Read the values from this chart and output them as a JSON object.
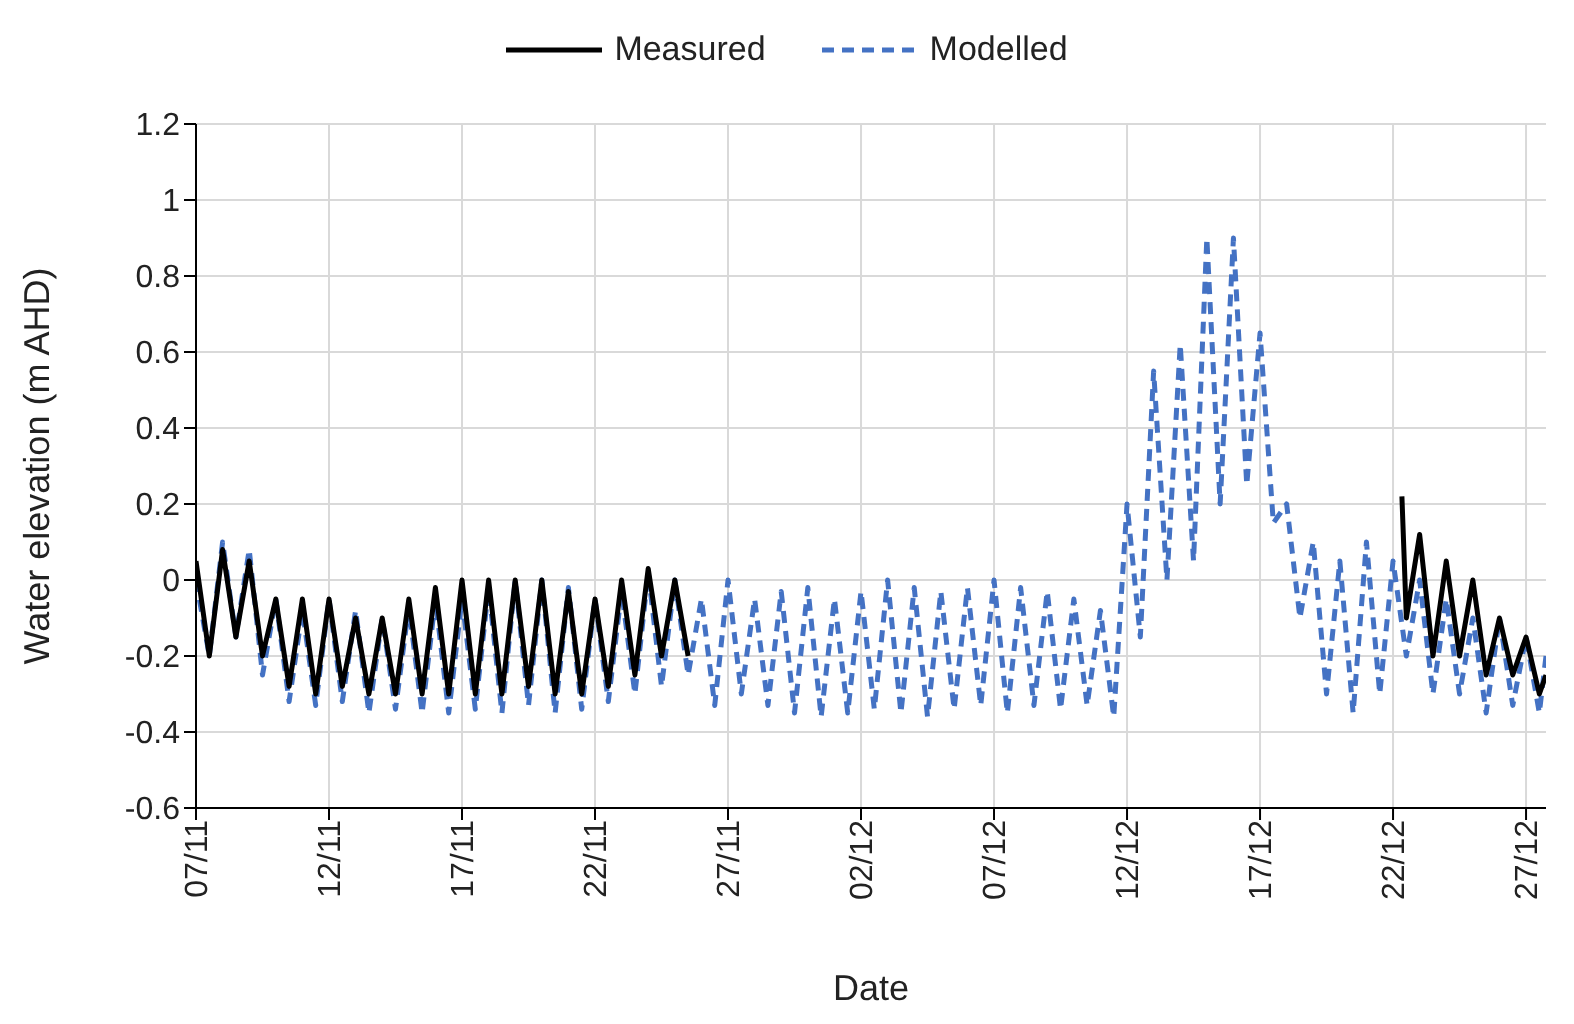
{
  "chart_data": {
    "type": "line",
    "xlabel": "Date",
    "ylabel": "Water elevation (m AHD)",
    "legend": "top",
    "grid": true,
    "marker": "none",
    "xlim": [
      "--11-07",
      "--12-27T18:00"
    ],
    "xticks": [
      {
        "value": "--11-07",
        "label": "07/11"
      },
      {
        "value": "--11-12",
        "label": "12/11"
      },
      {
        "value": "--11-17",
        "label": "17/11"
      },
      {
        "value": "--11-22",
        "label": "22/11"
      },
      {
        "value": "--11-27",
        "label": "27/11"
      },
      {
        "value": "--12-02",
        "label": "02/12"
      },
      {
        "value": "--12-07",
        "label": "07/12"
      },
      {
        "value": "--12-12",
        "label": "12/12"
      },
      {
        "value": "--12-17",
        "label": "17/12"
      },
      {
        "value": "--12-22",
        "label": "22/12"
      },
      {
        "value": "--12-27",
        "label": "27/12"
      }
    ],
    "ylim": [
      -0.6,
      1.2
    ],
    "yticks": [
      -0.6,
      -0.4,
      -0.2,
      0,
      0.2,
      0.4,
      0.6,
      0.8,
      1,
      1.2
    ],
    "series": [
      {
        "name": "Modelled",
        "color": "#4472c4",
        "line_style": "dashed",
        "x": [
          "--11-07",
          "--11-07T12:00",
          "--11-08",
          "--11-08T12:00",
          "--11-09",
          "--11-09T12:00",
          "--11-10",
          "--11-10T12:00",
          "--11-11",
          "--11-11T12:00",
          "--11-12",
          "--11-12T12:00",
          "--11-13",
          "--11-13T12:00",
          "--11-14",
          "--11-14T12:00",
          "--11-15",
          "--11-15T12:00",
          "--11-16",
          "--11-16T12:00",
          "--11-17",
          "--11-17T12:00",
          "--11-18",
          "--11-18T12:00",
          "--11-19",
          "--11-19T12:00",
          "--11-20",
          "--11-20T12:00",
          "--11-21",
          "--11-21T12:00",
          "--11-22",
          "--11-22T12:00",
          "--11-23",
          "--11-23T12:00",
          "--11-24",
          "--11-24T12:00",
          "--11-25",
          "--11-25T12:00",
          "--11-26",
          "--11-26T12:00",
          "--11-27",
          "--11-27T12:00",
          "--11-28",
          "--11-28T12:00",
          "--11-29",
          "--11-29T12:00",
          "--11-30",
          "--11-30T12:00",
          "--12-01",
          "--12-01T12:00",
          "--12-02",
          "--12-02T12:00",
          "--12-03",
          "--12-03T12:00",
          "--12-04",
          "--12-04T12:00",
          "--12-05",
          "--12-05T12:00",
          "--12-06",
          "--12-06T12:00",
          "--12-07",
          "--12-07T12:00",
          "--12-08",
          "--12-08T12:00",
          "--12-09",
          "--12-09T12:00",
          "--12-10",
          "--12-10T12:00",
          "--12-11",
          "--12-11T12:00",
          "--12-12",
          "--12-12T12:00",
          "--12-13",
          "--12-13T12:00",
          "--12-14",
          "--12-14T12:00",
          "--12-15",
          "--12-15T12:00",
          "--12-16",
          "--12-16T12:00",
          "--12-17",
          "--12-17T12:00",
          "--12-18",
          "--12-18T12:00",
          "--12-19",
          "--12-19T12:00",
          "--12-20",
          "--12-20T12:00",
          "--12-21",
          "--12-21T12:00",
          "--12-22",
          "--12-22T12:00",
          "--12-23",
          "--12-23T12:00",
          "--12-24",
          "--12-24T12:00",
          "--12-25",
          "--12-25T12:00",
          "--12-26",
          "--12-26T12:00",
          "--12-27",
          "--12-27T12:00",
          "--12-27T18:00"
        ],
        "values": [
          0.0,
          -0.2,
          0.1,
          -0.15,
          0.08,
          -0.25,
          -0.05,
          -0.32,
          -0.08,
          -0.33,
          -0.05,
          -0.32,
          -0.08,
          -0.35,
          -0.1,
          -0.34,
          -0.07,
          -0.35,
          -0.05,
          -0.35,
          -0.05,
          -0.34,
          -0.02,
          -0.35,
          0.0,
          -0.33,
          0.0,
          -0.35,
          -0.02,
          -0.34,
          -0.05,
          -0.32,
          -0.03,
          -0.3,
          0.02,
          -0.28,
          0.0,
          -0.25,
          -0.05,
          -0.33,
          0.0,
          -0.3,
          -0.05,
          -0.33,
          -0.03,
          -0.35,
          -0.02,
          -0.36,
          -0.05,
          -0.35,
          -0.03,
          -0.34,
          0.0,
          -0.35,
          -0.02,
          -0.36,
          -0.03,
          -0.34,
          -0.02,
          -0.33,
          0.0,
          -0.35,
          -0.02,
          -0.33,
          -0.03,
          -0.34,
          -0.05,
          -0.33,
          -0.08,
          -0.36,
          0.2,
          -0.15,
          0.55,
          0.0,
          0.62,
          0.05,
          0.9,
          0.2,
          0.9,
          0.25,
          0.65,
          0.15,
          0.2,
          -0.1,
          0.1,
          -0.3,
          0.05,
          -0.35,
          0.1,
          -0.3,
          0.05,
          -0.2,
          0.0,
          -0.3,
          -0.05,
          -0.3,
          -0.1,
          -0.35,
          -0.1,
          -0.33,
          -0.15,
          -0.35,
          -0.2
        ]
      },
      {
        "name": "Measured",
        "color": "#000000",
        "line_style": "solid",
        "x": [
          "--11-07",
          "--11-07T12:00",
          "--11-08",
          "--11-08T12:00",
          "--11-09",
          "--11-09T12:00",
          "--11-10",
          "--11-10T12:00",
          "--11-11",
          "--11-11T12:00",
          "--11-12",
          "--11-12T12:00",
          "--11-13",
          "--11-13T12:00",
          "--11-14",
          "--11-14T12:00",
          "--11-15",
          "--11-15T12:00",
          "--11-16",
          "--11-16T12:00",
          "--11-17",
          "--11-17T12:00",
          "--11-18",
          "--11-18T12:00",
          "--11-19",
          "--11-19T12:00",
          "--11-20",
          "--11-20T12:00",
          "--11-21",
          "--11-21T12:00",
          "--11-22",
          "--11-22T12:00",
          "--11-23",
          "--11-23T12:00",
          "--11-24",
          "--11-24T12:00",
          "--11-25",
          "--11-25T12:00",
          "--11-26",
          "--12-22T08:00",
          "--12-22T12:00",
          "--12-23",
          "--12-23T12:00",
          "--12-24",
          "--12-24T12:00",
          "--12-25",
          "--12-25T12:00",
          "--12-26",
          "--12-26T12:00",
          "--12-27",
          "--12-27T12:00",
          "--12-27T18:00"
        ],
        "values": [
          0.05,
          -0.2,
          0.08,
          -0.15,
          0.05,
          -0.2,
          -0.05,
          -0.28,
          -0.05,
          -0.3,
          -0.05,
          -0.28,
          -0.1,
          -0.3,
          -0.1,
          -0.3,
          -0.05,
          -0.3,
          -0.02,
          -0.3,
          0.0,
          -0.3,
          0.0,
          -0.3,
          0.0,
          -0.28,
          0.0,
          -0.3,
          -0.03,
          -0.3,
          -0.05,
          -0.28,
          0.0,
          -0.25,
          0.03,
          -0.2,
          0.0,
          -0.2,
          null,
          0.22,
          -0.1,
          0.12,
          -0.2,
          0.05,
          -0.2,
          0.0,
          -0.25,
          -0.1,
          -0.25,
          -0.15,
          -0.3,
          -0.25
        ]
      }
    ]
  }
}
